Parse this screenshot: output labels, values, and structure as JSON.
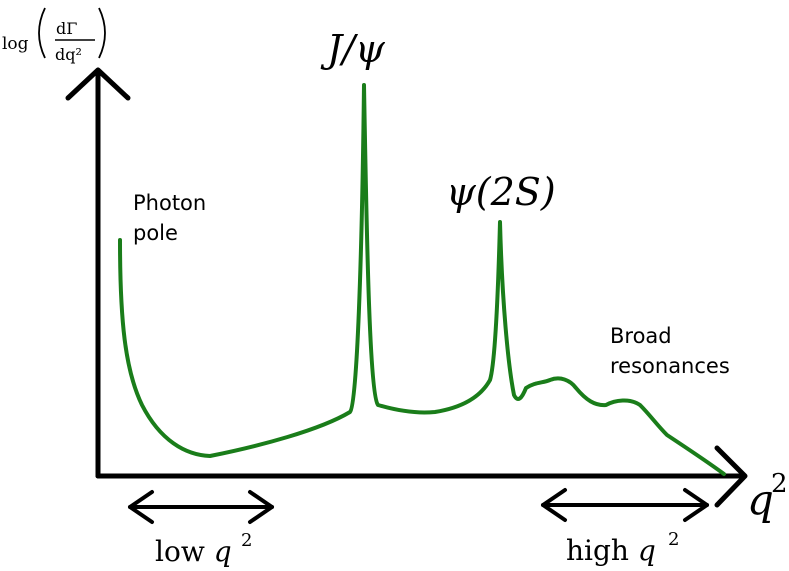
{
  "y_axis_label": {
    "log": "log",
    "numerator": "dΓ",
    "denominator": "dq²"
  },
  "x_axis_label": {
    "base": "q",
    "sup": "2"
  },
  "annotations": {
    "photon_pole": [
      "Photon",
      "pole"
    ],
    "jpsi": "J/ψ",
    "psi2s": "ψ(2S)",
    "broad_resonances": [
      "Broad",
      "resonances"
    ]
  },
  "ranges": {
    "low": {
      "word": "low ",
      "var": "q",
      "sup": "2"
    },
    "high": {
      "word": "high ",
      "var": "q",
      "sup": "2"
    }
  },
  "colors": {
    "curve": "#1a7d1a",
    "axes": "#000000"
  }
}
